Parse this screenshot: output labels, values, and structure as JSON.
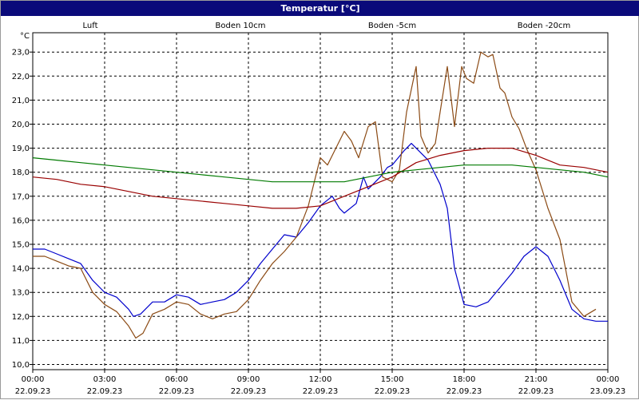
{
  "window": {
    "title": "Temperatur [°C]"
  },
  "chart_data": {
    "type": "line",
    "title": "Temperatur [°C]",
    "ylabel": "°C",
    "ylim": [
      10.0,
      23.5
    ],
    "y_ticks": [
      "10,0",
      "11,0",
      "12,0",
      "13,0",
      "14,0",
      "15,0",
      "16,0",
      "17,0",
      "18,0",
      "19,0",
      "20,0",
      "21,0",
      "22,0",
      "23,0"
    ],
    "x_range_hours": [
      0,
      24
    ],
    "x_ticks": [
      {
        "time": "00:00",
        "date": "22.09.23"
      },
      {
        "time": "03:00",
        "date": "22.09.23"
      },
      {
        "time": "06:00",
        "date": "22.09.23"
      },
      {
        "time": "09:00",
        "date": "22.09.23"
      },
      {
        "time": "12:00",
        "date": "22.09.23"
      },
      {
        "time": "15:00",
        "date": "22.09.23"
      },
      {
        "time": "18:00",
        "date": "22.09.23"
      },
      {
        "time": "21:00",
        "date": "22.09.23"
      },
      {
        "time": "00:00",
        "date": "23.09.23"
      }
    ],
    "grid": true,
    "legend_position": "top",
    "series": [
      {
        "name": "Luft",
        "color": "#0000cc",
        "points": [
          [
            0,
            14.8
          ],
          [
            0.5,
            14.8
          ],
          [
            1,
            14.6
          ],
          [
            1.5,
            14.4
          ],
          [
            2,
            14.2
          ],
          [
            2.5,
            13.5
          ],
          [
            3,
            13.0
          ],
          [
            3.5,
            12.8
          ],
          [
            4,
            12.3
          ],
          [
            4.2,
            12.0
          ],
          [
            4.5,
            12.1
          ],
          [
            5,
            12.6
          ],
          [
            5.5,
            12.6
          ],
          [
            6,
            12.9
          ],
          [
            6.5,
            12.8
          ],
          [
            7,
            12.5
          ],
          [
            7.5,
            12.6
          ],
          [
            8,
            12.7
          ],
          [
            8.5,
            13.0
          ],
          [
            9,
            13.5
          ],
          [
            9.5,
            14.2
          ],
          [
            10,
            14.8
          ],
          [
            10.5,
            15.4
          ],
          [
            11,
            15.3
          ],
          [
            11.5,
            15.9
          ],
          [
            12,
            16.6
          ],
          [
            12.5,
            17.0
          ],
          [
            12.8,
            16.5
          ],
          [
            13,
            16.3
          ],
          [
            13.5,
            16.7
          ],
          [
            13.8,
            17.8
          ],
          [
            14,
            17.3
          ],
          [
            14.5,
            17.8
          ],
          [
            14.8,
            18.2
          ],
          [
            15,
            18.3
          ],
          [
            15.5,
            18.9
          ],
          [
            15.8,
            19.2
          ],
          [
            16,
            19.0
          ],
          [
            16.5,
            18.5
          ],
          [
            17,
            17.5
          ],
          [
            17.3,
            16.5
          ],
          [
            17.6,
            14.0
          ],
          [
            18,
            12.5
          ],
          [
            18.5,
            12.4
          ],
          [
            19,
            12.6
          ],
          [
            19.5,
            13.2
          ],
          [
            20,
            13.8
          ],
          [
            20.5,
            14.5
          ],
          [
            21,
            14.9
          ],
          [
            21.5,
            14.5
          ],
          [
            22,
            13.5
          ],
          [
            22.5,
            12.3
          ],
          [
            23,
            11.9
          ],
          [
            23.5,
            11.8
          ],
          [
            24,
            11.8
          ]
        ]
      },
      {
        "name": "Boden 10cm",
        "color": "#8b4a14",
        "points": [
          [
            0,
            14.5
          ],
          [
            0.5,
            14.5
          ],
          [
            1,
            14.3
          ],
          [
            1.5,
            14.1
          ],
          [
            2,
            14.0
          ],
          [
            2.5,
            13.0
          ],
          [
            3,
            12.5
          ],
          [
            3.5,
            12.2
          ],
          [
            4,
            11.6
          ],
          [
            4.3,
            11.1
          ],
          [
            4.6,
            11.3
          ],
          [
            5,
            12.1
          ],
          [
            5.5,
            12.3
          ],
          [
            6,
            12.6
          ],
          [
            6.5,
            12.5
          ],
          [
            7,
            12.1
          ],
          [
            7.5,
            11.9
          ],
          [
            8,
            12.1
          ],
          [
            8.5,
            12.2
          ],
          [
            9,
            12.7
          ],
          [
            9.5,
            13.5
          ],
          [
            10,
            14.2
          ],
          [
            10.5,
            14.7
          ],
          [
            11,
            15.3
          ],
          [
            11.5,
            16.6
          ],
          [
            12,
            18.6
          ],
          [
            12.3,
            18.3
          ],
          [
            12.6,
            18.9
          ],
          [
            13,
            19.7
          ],
          [
            13.3,
            19.3
          ],
          [
            13.6,
            18.6
          ],
          [
            14,
            19.9
          ],
          [
            14.3,
            20.1
          ],
          [
            14.6,
            17.8
          ],
          [
            15,
            17.6
          ],
          [
            15.3,
            18.1
          ],
          [
            15.6,
            20.5
          ],
          [
            16,
            22.4
          ],
          [
            16.2,
            19.5
          ],
          [
            16.5,
            18.8
          ],
          [
            16.8,
            19.2
          ],
          [
            17,
            20.5
          ],
          [
            17.3,
            22.4
          ],
          [
            17.6,
            19.9
          ],
          [
            17.9,
            22.4
          ],
          [
            18.1,
            21.9
          ],
          [
            18.4,
            21.7
          ],
          [
            18.7,
            23.0
          ],
          [
            19,
            22.8
          ],
          [
            19.2,
            22.9
          ],
          [
            19.5,
            21.5
          ],
          [
            19.7,
            21.3
          ],
          [
            20,
            20.3
          ],
          [
            20.3,
            19.8
          ],
          [
            20.6,
            19.0
          ],
          [
            21,
            18.1
          ],
          [
            21.5,
            16.5
          ],
          [
            22,
            15.2
          ],
          [
            22.5,
            12.6
          ],
          [
            23,
            12.0
          ],
          [
            23.5,
            12.3
          ]
        ]
      },
      {
        "name": "Boden -5cm",
        "color": "#990000",
        "points": [
          [
            0,
            17.8
          ],
          [
            1,
            17.7
          ],
          [
            2,
            17.5
          ],
          [
            3,
            17.4
          ],
          [
            4,
            17.2
          ],
          [
            5,
            17.0
          ],
          [
            6,
            16.9
          ],
          [
            7,
            16.8
          ],
          [
            8,
            16.7
          ],
          [
            9,
            16.6
          ],
          [
            10,
            16.5
          ],
          [
            11,
            16.5
          ],
          [
            12,
            16.6
          ],
          [
            13,
            17.0
          ],
          [
            14,
            17.4
          ],
          [
            15,
            17.8
          ],
          [
            16,
            18.4
          ],
          [
            17,
            18.7
          ],
          [
            18,
            18.9
          ],
          [
            19,
            19.0
          ],
          [
            20,
            19.0
          ],
          [
            21,
            18.7
          ],
          [
            22,
            18.3
          ],
          [
            23,
            18.2
          ],
          [
            24,
            18.0
          ]
        ]
      },
      {
        "name": "Boden -20cm",
        "color": "#007a00",
        "points": [
          [
            0,
            18.6
          ],
          [
            1,
            18.5
          ],
          [
            2,
            18.4
          ],
          [
            3,
            18.3
          ],
          [
            4,
            18.2
          ],
          [
            5,
            18.1
          ],
          [
            6,
            18.0
          ],
          [
            7,
            17.9
          ],
          [
            8,
            17.8
          ],
          [
            9,
            17.7
          ],
          [
            10,
            17.6
          ],
          [
            11,
            17.6
          ],
          [
            12,
            17.6
          ],
          [
            13,
            17.6
          ],
          [
            14,
            17.8
          ],
          [
            15,
            18.0
          ],
          [
            16,
            18.1
          ],
          [
            17,
            18.2
          ],
          [
            18,
            18.3
          ],
          [
            19,
            18.3
          ],
          [
            20,
            18.3
          ],
          [
            21,
            18.2
          ],
          [
            22,
            18.1
          ],
          [
            23,
            18.0
          ],
          [
            24,
            17.8
          ]
        ]
      }
    ]
  }
}
